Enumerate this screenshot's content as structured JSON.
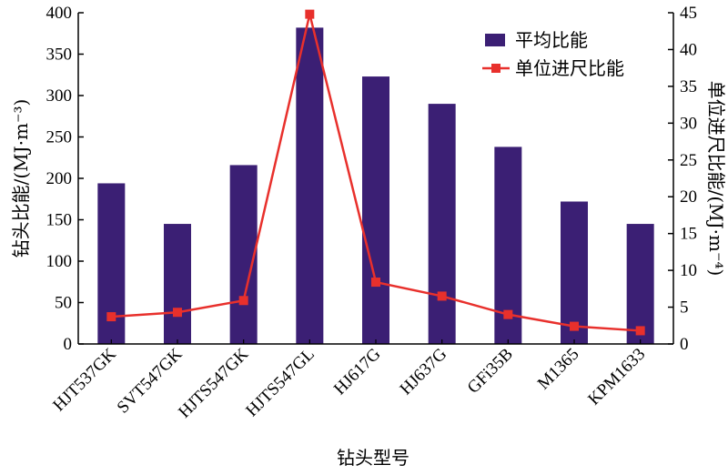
{
  "chart_data": {
    "type": "bar",
    "categories": [
      "HJT537GK",
      "SVT547GK",
      "HJTS547GK",
      "HJTS547GL",
      "HJ617G",
      "HJ637G",
      "GFi35B",
      "M1365",
      "KPM1633"
    ],
    "series": [
      {
        "name": "平均比能",
        "type": "bar",
        "axis": "left",
        "color": "#3b1f74",
        "values": [
          194,
          145,
          216,
          382,
          323,
          290,
          238,
          172,
          145
        ]
      },
      {
        "name": "单位进尺比能",
        "type": "line",
        "axis": "right",
        "color": "#e8302c",
        "marker": "square",
        "values": [
          3.7,
          4.3,
          5.9,
          44.8,
          8.4,
          6.5,
          4.0,
          2.4,
          1.8
        ]
      }
    ],
    "xlabel": "钻头型号",
    "ylabel_left": "钻头比能/(MJ·m⁻³)",
    "ylabel_right": "单位进尺比能/(MJ·m⁻⁴)",
    "ylim_left": [
      0,
      400
    ],
    "yticks_left": [
      "0",
      "50",
      "100",
      "150",
      "200",
      "250",
      "300",
      "350",
      "400"
    ],
    "ylim_right": [
      0,
      45
    ],
    "yticks_right": [
      "0",
      "5",
      "10",
      "15",
      "20",
      "25",
      "30",
      "35",
      "40",
      "45"
    ],
    "grid": false,
    "legend": "top-right"
  }
}
